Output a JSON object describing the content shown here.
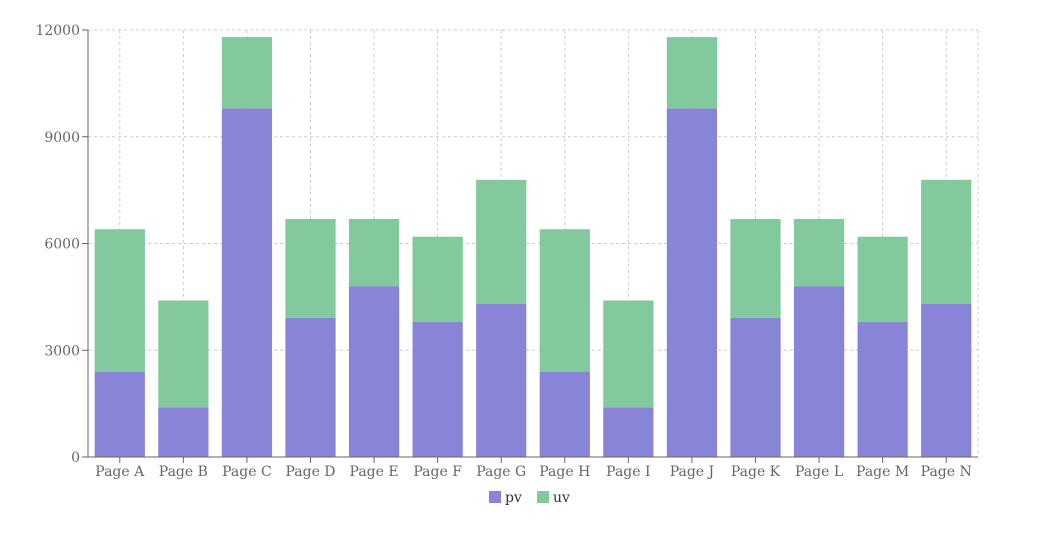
{
  "chart_data": {
    "type": "bar",
    "stacked": true,
    "categories": [
      "Page A",
      "Page B",
      "Page C",
      "Page D",
      "Page E",
      "Page F",
      "Page G",
      "Page H",
      "Page I",
      "Page J",
      "Page K",
      "Page L",
      "Page M",
      "Page N"
    ],
    "series": [
      {
        "name": "pv",
        "color": "#8884d8",
        "values": [
          2400,
          1398,
          9800,
          3908,
          4800,
          3800,
          4300,
          2400,
          1398,
          9800,
          3908,
          4800,
          3800,
          4300
        ]
      },
      {
        "name": "uv",
        "color": "#82ca9d",
        "values": [
          4000,
          3000,
          2000,
          2780,
          1890,
          2390,
          3490,
          4000,
          3000,
          2000,
          2780,
          1890,
          2390,
          3490
        ]
      }
    ],
    "title": "",
    "xlabel": "",
    "ylabel": "",
    "ylim": [
      0,
      12000
    ],
    "yticks": [
      0,
      3000,
      6000,
      9000,
      12000
    ],
    "grid": true,
    "legend_position": "bottom-center"
  }
}
